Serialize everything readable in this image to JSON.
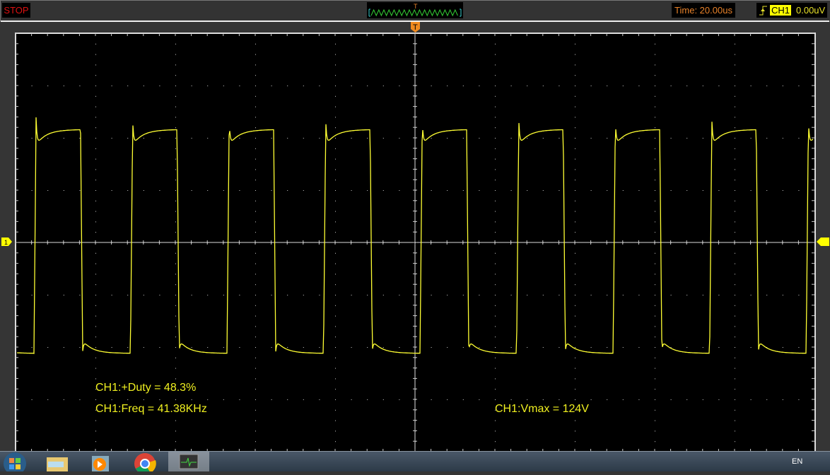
{
  "status": {
    "run_state": "STOP",
    "color": "#dd1111"
  },
  "timebase": {
    "label": "Time: 20.00us"
  },
  "trigger": {
    "edge_icon": "rising-edge-icon",
    "channel": "CH1",
    "level": "0.00uV",
    "marker": "T"
  },
  "channel_marker": "1",
  "measurements": {
    "duty": "CH1:+Duty = 48.3%",
    "freq": "CH1:Freq = 41.38KHz",
    "vmax": "CH1:Vmax = 124V"
  },
  "chart_data": {
    "type": "line",
    "title": "",
    "series": [
      {
        "color": "#ffff33",
        "shape": "square-wave",
        "frequency_khz": 41.38,
        "duty_percent": 48.3,
        "vmax_v": 124
      }
    ],
    "grid": true,
    "x_divisions": 10,
    "y_divisions": 8,
    "time_per_div": "20.00us"
  },
  "taskbar": {
    "items": [
      "start-button",
      "file-explorer",
      "media-player",
      "chrome",
      "oscilloscope-app"
    ],
    "language": "EN"
  },
  "colors": {
    "trace": "#ffff33",
    "grid": "#cccccc",
    "trigger": "#f08a20"
  }
}
